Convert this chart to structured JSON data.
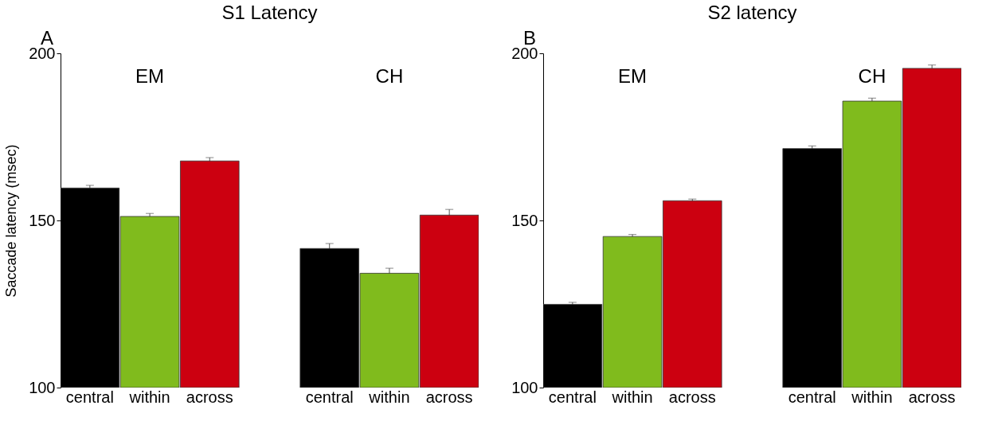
{
  "chart_data": [
    {
      "type": "bar",
      "title": "S1 Latency",
      "ylabel": "Saccade latency (msec)",
      "annotations": [
        "A",
        "EM",
        "CH"
      ],
      "categories": [
        "central",
        "within",
        "across",
        "central",
        "within",
        "across"
      ],
      "values": [
        159.7,
        151.2,
        167.8,
        141.6,
        134.2,
        151.6
      ],
      "errors": [
        0.8,
        0.9,
        1.0,
        1.5,
        1.5,
        1.7
      ],
      "colors": [
        "#000000",
        "#80bb1d",
        "#cc0010",
        "#000000",
        "#80bb1d",
        "#cc0010"
      ],
      "ylim": [
        100,
        200
      ],
      "yticks": [
        100,
        150,
        200
      ],
      "grid": false
    },
    {
      "type": "bar",
      "title": "S2 latency",
      "annotations": [
        "B",
        "EM",
        "CH"
      ],
      "categories": [
        "central",
        "within",
        "across",
        "central",
        "within",
        "across"
      ],
      "values": [
        124.9,
        145.2,
        155.9,
        171.5,
        185.7,
        195.5
      ],
      "errors": [
        0.6,
        0.6,
        0.5,
        0.8,
        0.9,
        1.0
      ],
      "colors": [
        "#000000",
        "#80bb1d",
        "#cc0010",
        "#000000",
        "#80bb1d",
        "#cc0010"
      ],
      "ylim": [
        100,
        200
      ],
      "yticks": [
        100,
        150,
        200
      ],
      "grid": false
    }
  ]
}
